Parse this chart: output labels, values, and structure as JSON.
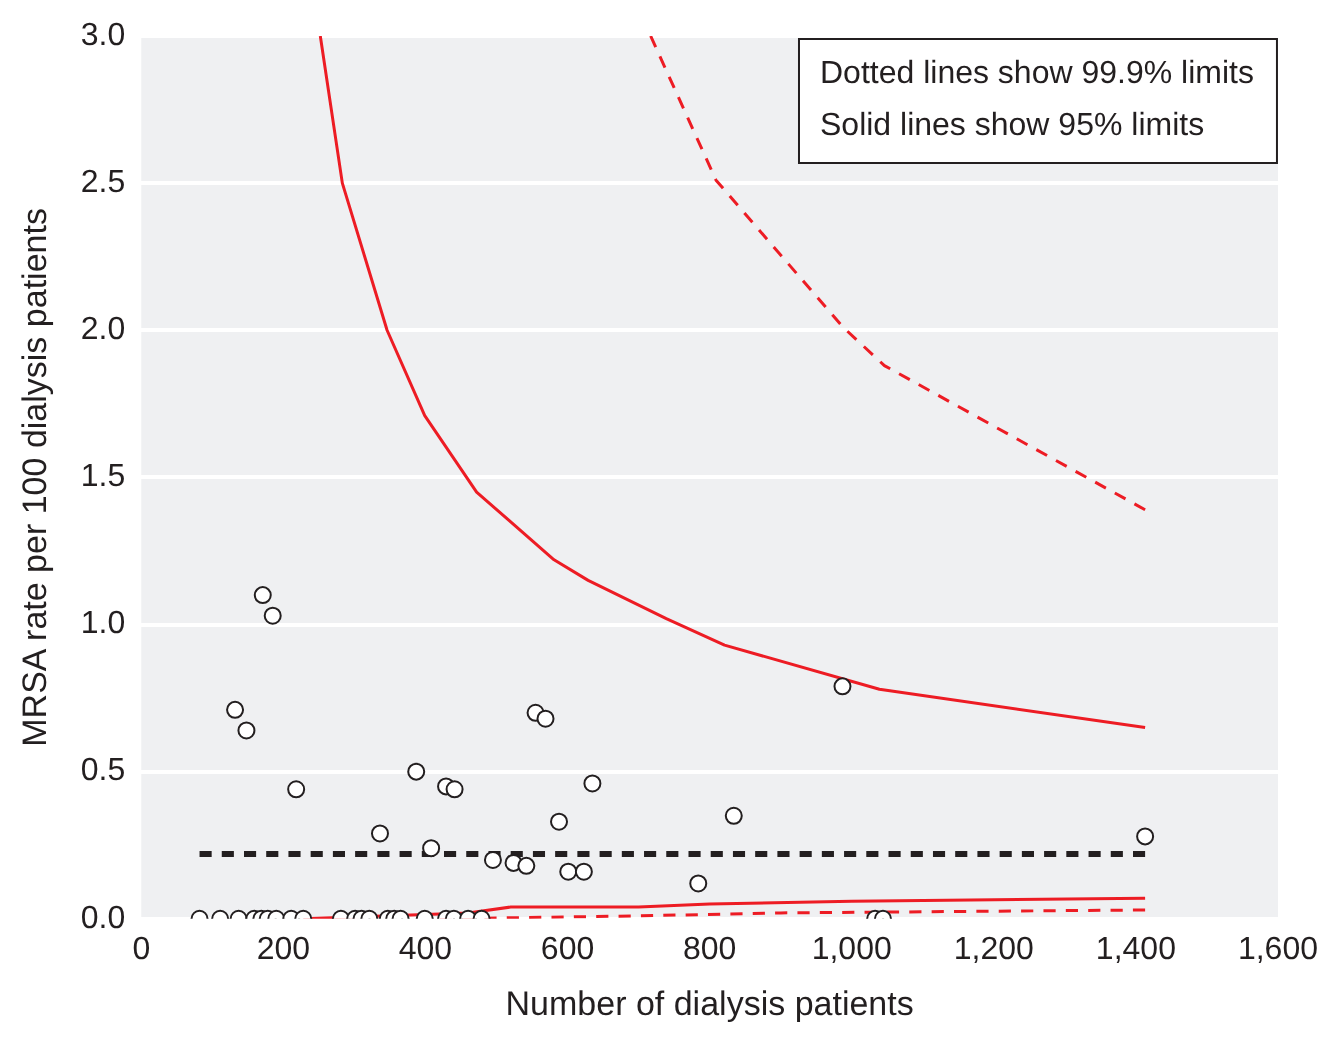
{
  "chart_data": {
    "type": "scatter",
    "xlabel": "Number of dialysis patients",
    "ylabel": "MRSA rate per 100 dialysis patients",
    "xlim": [
      0,
      1600
    ],
    "xticks": [
      0,
      200,
      400,
      600,
      800,
      {
        "value": 1000,
        "label": "1,000"
      },
      {
        "value": 1200,
        "label": "1,200"
      },
      {
        "value": 1400,
        "label": "1,400"
      },
      {
        "value": 1600,
        "label": "1,600"
      }
    ],
    "ylim": [
      0,
      3
    ],
    "yticks": [
      {
        "value": 0,
        "label": "0.0"
      },
      0.5,
      {
        "value": 1,
        "label": "1.0"
      },
      1.5,
      {
        "value": 2,
        "label": "2.0"
      },
      2.5,
      {
        "value": 3,
        "label": "3.0"
      }
    ],
    "grid": "y",
    "legend": false,
    "annotations": [
      "Dotted lines show 99.9% limits",
      "Solid lines show 95% limits"
    ],
    "series": [
      {
        "type": "line",
        "color": "#ed1c24",
        "line_style": "dashed",
        "marker": "none",
        "x": [
          717,
          809,
          988,
          1046,
          1413
        ],
        "values": [
          3.0,
          2.51,
          2.01,
          1.88,
          1.39
        ]
      },
      {
        "type": "line",
        "color": "#ed1c24",
        "line_style": "solid",
        "marker": "none",
        "x": [
          252,
          283,
          346,
          399,
          472,
          581,
          629,
          739,
          821,
          1039,
          1413
        ],
        "values": [
          3.0,
          2.5,
          2.0,
          1.71,
          1.45,
          1.22,
          1.15,
          1.02,
          0.93,
          0.78,
          0.65
        ]
      },
      {
        "type": "line",
        "color": "#ed1c24",
        "line_style": "solid",
        "marker": "none",
        "x": [
          228,
          460,
          520,
          700,
          800,
          1000,
          1413
        ],
        "values": [
          0,
          0.02,
          0.04,
          0.04,
          0.05,
          0.06,
          0.07
        ]
      },
      {
        "type": "line",
        "color": "#ed1c24",
        "line_style": "dashed",
        "marker": "none",
        "x": [
          420,
          700,
          900,
          1413
        ],
        "values": [
          0,
          0.01,
          0.02,
          0.03
        ]
      },
      {
        "type": "line",
        "color": "#231f20",
        "line_style": "dashed",
        "marker": "none",
        "x": [
          82,
          1413
        ],
        "values": [
          0.22,
          0.22
        ]
      },
      {
        "type": "scatter",
        "color": "#231f20",
        "marker": "circle",
        "x": [
          82,
          111,
          137,
          159,
          169,
          178,
          190,
          211,
          228,
          281,
          301,
          310,
          321,
          347,
          356,
          365,
          399,
          429,
          440,
          460,
          479,
          1033,
          1044,
          171,
          185,
          132,
          148,
          218,
          387,
          429,
          441,
          336,
          408,
          555,
          569,
          495,
          524,
          542,
          588,
          635,
          601,
          623,
          987,
          834,
          784,
          1413
        ],
        "values": [
          0,
          0,
          0,
          0,
          0,
          0,
          0,
          0,
          0,
          0,
          0,
          0,
          0,
          0,
          0,
          0,
          0,
          0,
          0,
          0,
          0,
          0,
          0,
          1.1,
          1.03,
          0.71,
          0.64,
          0.44,
          0.5,
          0.45,
          0.44,
          0.29,
          0.24,
          0.7,
          0.68,
          0.2,
          0.19,
          0.18,
          0.33,
          0.46,
          0.16,
          0.16,
          0.79,
          0.35,
          0.12,
          0.28
        ]
      }
    ]
  }
}
